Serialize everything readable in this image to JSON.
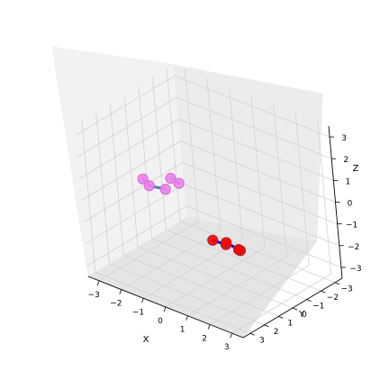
{
  "chart_data": {
    "type": "scatter",
    "projection": "3d",
    "xlabel": "X",
    "ylabel": "Y",
    "zlabel": "Z",
    "xlim": [
      -3.5,
      3.5
    ],
    "ylim": [
      -3.5,
      3.5
    ],
    "zlim": [
      -3.5,
      3.5
    ],
    "xticks": [
      "−3",
      "−2",
      "−1",
      "0",
      "1",
      "2",
      "3"
    ],
    "yticks": [
      "−3",
      "−2",
      "−1",
      "0",
      "1",
      "2",
      "3"
    ],
    "zticks": [
      "−3",
      "−2",
      "−1",
      "0",
      "1",
      "2",
      "3"
    ],
    "grid": true,
    "series": [
      {
        "color": "#ee82ee",
        "edge_color": "#da70d6",
        "bond_color": "#4682b4",
        "points": [
          {
            "x": -2.28,
            "y": 1.0,
            "z": 0.5
          },
          {
            "x": -1.8,
            "y": 1.3,
            "z": 0.5
          },
          {
            "x": -1.2,
            "y": 1.1,
            "z": 0.5
          },
          {
            "x": -1.1,
            "y": 0.3,
            "z": 0.5
          },
          {
            "x": -1.5,
            "y": 0.25,
            "z": 0.55
          }
        ],
        "bonds": [
          [
            0,
            1
          ],
          [
            1,
            2
          ],
          [
            3,
            4
          ]
        ]
      },
      {
        "color": "#ff0000",
        "edge_color": "#b22222",
        "bond_color": "#0000cd",
        "points": [
          {
            "x": 0.64,
            "y": 0.86,
            "z": -1.2
          },
          {
            "x": 1.2,
            "y": 0.8,
            "z": -1.2
          },
          {
            "x": 1.5,
            "y": 0.3,
            "z": -1.55
          },
          {
            "x": 0.8,
            "y": 0.2,
            "z": -1.5
          },
          {
            "x": 1.35,
            "y": 0.2,
            "z": -1.6
          }
        ],
        "bonds": [
          [
            0,
            1
          ],
          [
            3,
            4
          ],
          [
            4,
            2
          ]
        ]
      }
    ]
  }
}
